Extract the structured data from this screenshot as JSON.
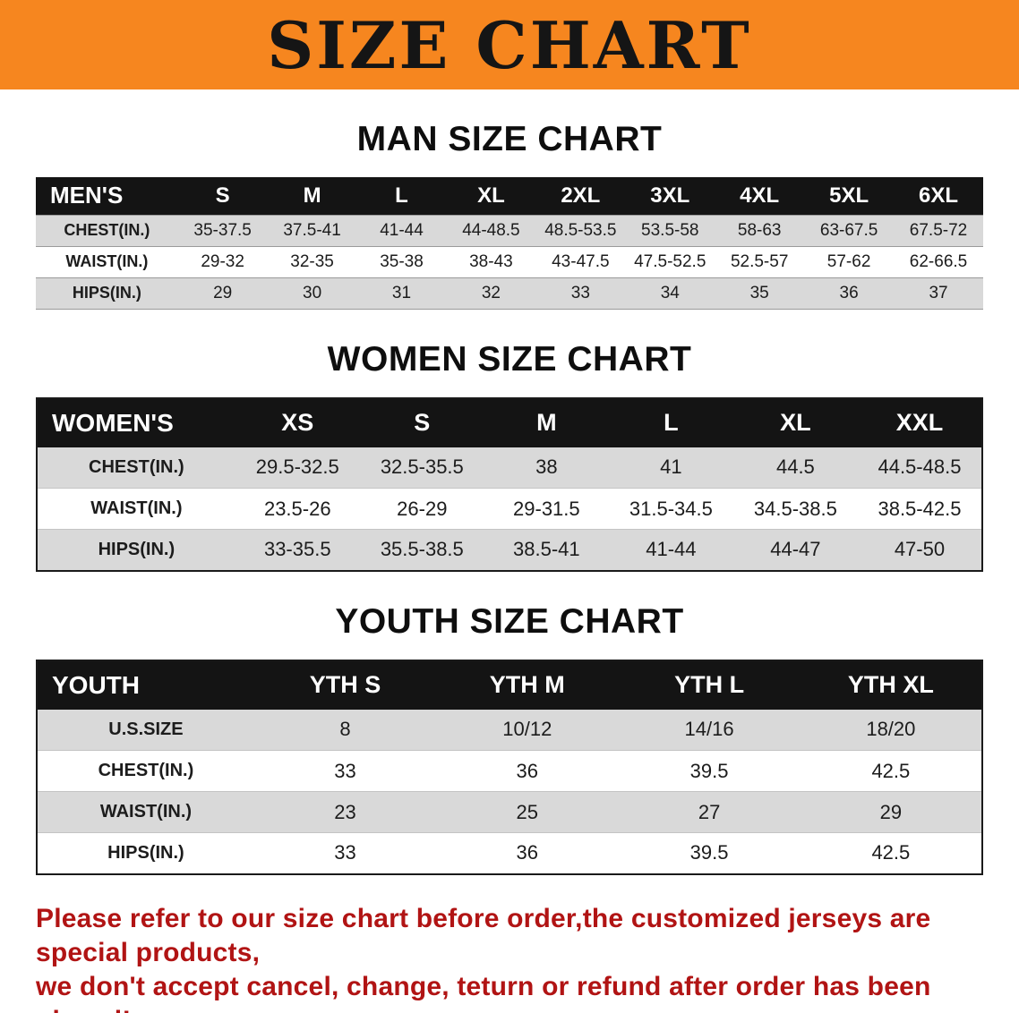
{
  "banner": {
    "title": "SIZE CHART",
    "bg_color": "#f6861f",
    "text_color": "#151515"
  },
  "chart_data": [
    {
      "type": "table",
      "title": "MAN SIZE CHART",
      "columns": [
        "MEN'S",
        "S",
        "M",
        "L",
        "XL",
        "2XL",
        "3XL",
        "4XL",
        "5XL",
        "6XL"
      ],
      "rows": [
        [
          "CHEST(IN.)",
          "35-37.5",
          "37.5-41",
          "41-44",
          "44-48.5",
          "48.5-53.5",
          "53.5-58",
          "58-63",
          "63-67.5",
          "67.5-72"
        ],
        [
          "WAIST(IN.)",
          "29-32",
          "32-35",
          "35-38",
          "38-43",
          "43-47.5",
          "47.5-52.5",
          "52.5-57",
          "57-62",
          "62-66.5"
        ],
        [
          "HIPS(IN.)",
          "29",
          "30",
          "31",
          "32",
          "33",
          "34",
          "35",
          "36",
          "37"
        ]
      ]
    },
    {
      "type": "table",
      "title": "WOMEN SIZE CHART",
      "columns": [
        "WOMEN'S",
        "XS",
        "S",
        "M",
        "L",
        "XL",
        "XXL"
      ],
      "rows": [
        [
          "CHEST(IN.)",
          "29.5-32.5",
          "32.5-35.5",
          "38",
          "41",
          "44.5",
          "44.5-48.5"
        ],
        [
          "WAIST(IN.)",
          "23.5-26",
          "26-29",
          "29-31.5",
          "31.5-34.5",
          "34.5-38.5",
          "38.5-42.5"
        ],
        [
          "HIPS(IN.)",
          "33-35.5",
          "35.5-38.5",
          "38.5-41",
          "41-44",
          "44-47",
          "47-50"
        ]
      ]
    },
    {
      "type": "table",
      "title": "YOUTH SIZE CHART",
      "columns": [
        "YOUTH",
        "YTH S",
        "YTH M",
        "YTH L",
        "YTH XL"
      ],
      "rows": [
        [
          "U.S.SIZE",
          "8",
          "10/12",
          "14/16",
          "18/20"
        ],
        [
          "CHEST(IN.)",
          "33",
          "36",
          "39.5",
          "42.5"
        ],
        [
          "WAIST(IN.)",
          "23",
          "25",
          "27",
          "29"
        ],
        [
          "HIPS(IN.)",
          "33",
          "36",
          "39.5",
          "42.5"
        ]
      ]
    }
  ],
  "footer": {
    "line1": "Please refer to our size chart before order,the customized jerseys are special products,",
    "line2": "we don't accept cancel, change, teturn or refund after order has been placed!",
    "text_color": "#b11414"
  }
}
